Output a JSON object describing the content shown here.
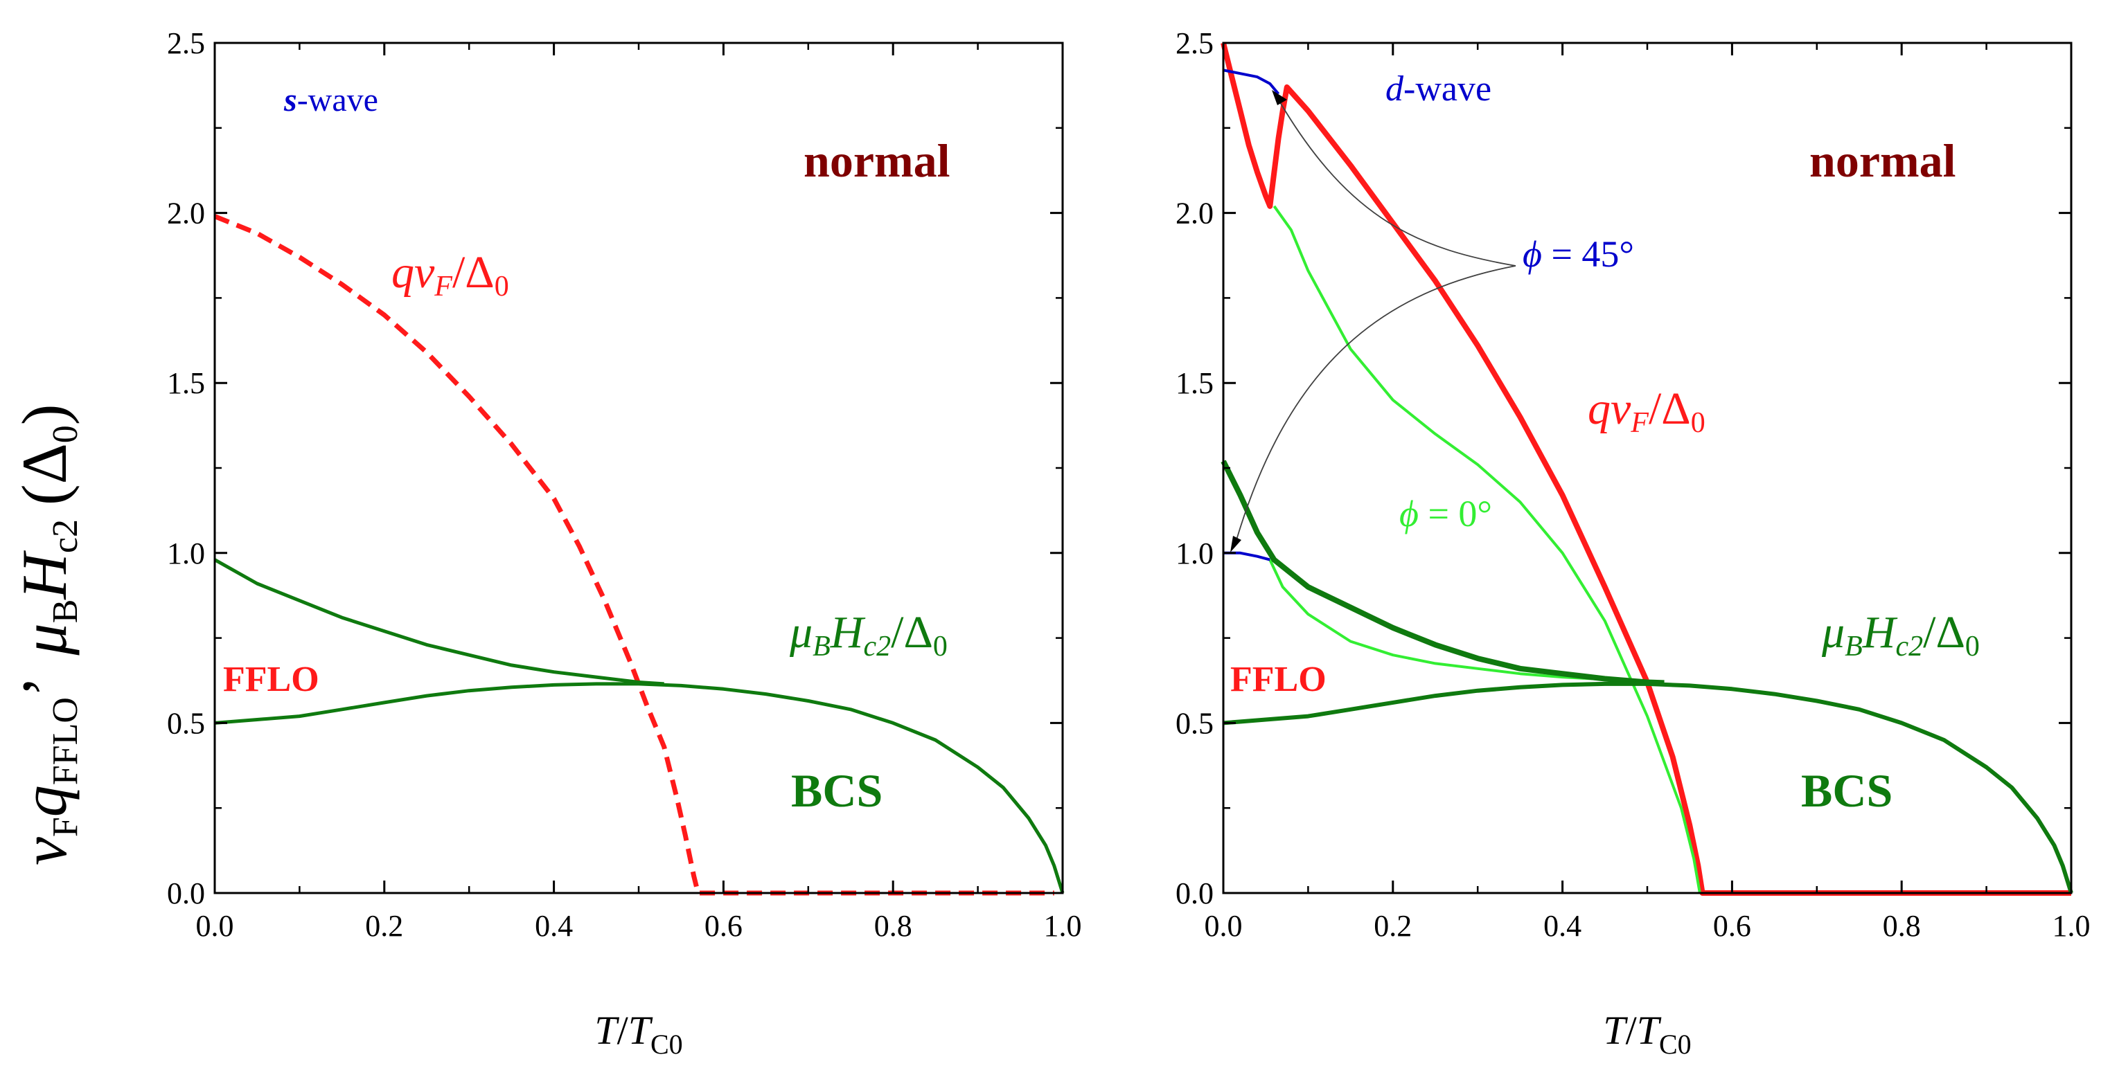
{
  "colors": {
    "red": "#ff1a1a",
    "dark_green": "#0f7a0f",
    "light_green": "#33ee33",
    "blue": "#0000cc",
    "maroon": "#7f0000",
    "axis": "#000000",
    "leader": "#404040"
  },
  "y_axis_label": {
    "mu": "μ",
    "mu_sub": "B",
    "H": "H",
    "H_sub": "c2",
    "delta": "(Δ",
    "delta_sub": "0",
    "delta_close": ")",
    "v": "v",
    "v_sub": "F",
    "q": "q",
    "q_sub": "FFLO",
    "comma": "’"
  },
  "chart_data": [
    {
      "type": "line",
      "panel": "left",
      "xlabel": {
        "T": "T",
        "slash": "/",
        "T2": "T",
        "sub": "C0"
      },
      "xlim": [
        0,
        1
      ],
      "ylim": [
        0,
        2.5
      ],
      "xticks": [
        "0.0",
        "0.2",
        "0.4",
        "0.6",
        "0.8",
        "1.0"
      ],
      "yticks": [
        "0.0",
        "0.5",
        "1.0",
        "1.5",
        "2.0",
        "2.5"
      ],
      "annotations": {
        "wave_s": "s",
        "wave_rest": "-wave",
        "normal": "normal",
        "fflo": "FFLO",
        "bcs": "BCS",
        "qvf_q": "q",
        "qvf_v": "v",
        "qvf_F": "F",
        "qvf_slash": "/Δ",
        "qvf_0": "0",
        "hc2_mu": "μ",
        "hc2_B": "B",
        "hc2_H": "H",
        "hc2_c2": "c2",
        "hc2_slash": "/Δ",
        "hc2_0": "0"
      },
      "series": [
        {
          "name": "qvF/Δ0 (dashed)",
          "color": "red",
          "dash": true,
          "width": 7,
          "x": [
            0,
            0.05,
            0.1,
            0.15,
            0.2,
            0.25,
            0.3,
            0.35,
            0.4,
            0.43,
            0.46,
            0.49,
            0.51,
            0.53,
            0.545,
            0.555,
            0.565,
            0.57,
            0.6,
            0.7,
            0.8,
            0.9,
            0.99
          ],
          "y": [
            1.99,
            1.94,
            1.87,
            1.79,
            1.7,
            1.59,
            1.46,
            1.32,
            1.16,
            1.02,
            0.86,
            0.68,
            0.55,
            0.43,
            0.28,
            0.17,
            0.05,
            0.0,
            0.0,
            0.0,
            0.0,
            0.0,
            0.0
          ]
        },
        {
          "name": "μB Hc2/Δ0 upper branch",
          "color": "dark_green",
          "dash": false,
          "width": 5,
          "x": [
            0,
            0.05,
            0.1,
            0.15,
            0.2,
            0.25,
            0.3,
            0.35,
            0.4,
            0.45,
            0.5,
            0.53
          ],
          "y": [
            0.98,
            0.91,
            0.86,
            0.81,
            0.77,
            0.73,
            0.7,
            0.67,
            0.65,
            0.635,
            0.62,
            0.615
          ]
        },
        {
          "name": "μB Hc2/Δ0 lower branch",
          "color": "dark_green",
          "dash": false,
          "width": 5,
          "x": [
            0,
            0.05,
            0.1,
            0.15,
            0.2,
            0.25,
            0.3,
            0.35,
            0.4,
            0.45,
            0.5,
            0.55,
            0.6,
            0.65,
            0.7,
            0.75,
            0.8,
            0.85,
            0.9,
            0.93,
            0.96,
            0.98,
            0.99,
            1.0
          ],
          "y": [
            0.5,
            0.51,
            0.52,
            0.54,
            0.56,
            0.58,
            0.595,
            0.605,
            0.612,
            0.615,
            0.615,
            0.61,
            0.6,
            0.585,
            0.565,
            0.54,
            0.5,
            0.45,
            0.37,
            0.31,
            0.22,
            0.14,
            0.08,
            0.0
          ]
        }
      ]
    },
    {
      "type": "line",
      "panel": "right",
      "xlabel": {
        "T": "T",
        "slash": "/",
        "T2": "T",
        "sub": "C0"
      },
      "xlim": [
        0,
        1
      ],
      "ylim": [
        0,
        2.5
      ],
      "xticks": [
        "0.0",
        "0.2",
        "0.4",
        "0.6",
        "0.8",
        "1.0"
      ],
      "yticks": [
        "0.0",
        "0.5",
        "1.0",
        "1.5",
        "2.0",
        "2.5"
      ],
      "annotations": {
        "wave_d": "d",
        "wave_rest": "-wave",
        "normal": "normal",
        "fflo": "FFLO",
        "bcs": "BCS",
        "phi45_sym": "ϕ",
        "phi45_val": " = 45°",
        "phi0_sym": "ϕ",
        "phi0_val": " = 0°",
        "qvf_q": "q",
        "qvf_v": "v",
        "qvf_F": "F",
        "qvf_slash": "/Δ",
        "qvf_0": "0",
        "hc2_mu": "μ",
        "hc2_B": "B",
        "hc2_H": "H",
        "hc2_c2": "c2",
        "hc2_slash": "/Δ",
        "hc2_0": "0"
      },
      "series": [
        {
          "name": "qvF/Δ0 (ϕ = 45°)",
          "color": "red",
          "dash": false,
          "width": 8,
          "x": [
            0,
            0.01,
            0.02,
            0.03,
            0.04,
            0.05,
            0.055,
            0.06,
            0.065,
            0.07,
            0.075,
            0.1,
            0.15,
            0.2,
            0.25,
            0.3,
            0.35,
            0.4,
            0.45,
            0.5,
            0.53,
            0.55,
            0.56,
            0.565,
            0.6,
            0.7,
            0.8,
            0.9,
            1.0
          ],
          "y": [
            2.5,
            2.4,
            2.3,
            2.2,
            2.12,
            2.05,
            2.02,
            2.12,
            2.22,
            2.3,
            2.37,
            2.3,
            2.14,
            1.97,
            1.8,
            1.61,
            1.4,
            1.17,
            0.9,
            0.62,
            0.4,
            0.2,
            0.08,
            0.0,
            0.0,
            0.0,
            0.0,
            0.0,
            0.0
          ]
        },
        {
          "name": "qvF/Δ0 (ϕ = 0°)",
          "color": "light_green",
          "dash": false,
          "width": 4,
          "x": [
            0.06,
            0.08,
            0.1,
            0.15,
            0.2,
            0.25,
            0.3,
            0.35,
            0.4,
            0.45,
            0.5,
            0.54,
            0.555,
            0.562
          ],
          "y": [
            2.02,
            1.95,
            1.83,
            1.6,
            1.45,
            1.35,
            1.26,
            1.15,
            1.0,
            0.8,
            0.52,
            0.25,
            0.1,
            0.0
          ]
        },
        {
          "name": "μB Hc2/Δ0 (ϕ = 0°) upper",
          "color": "light_green",
          "dash": false,
          "width": 4,
          "x": [
            0.055,
            0.07,
            0.1,
            0.15,
            0.2,
            0.25,
            0.3,
            0.35,
            0.4,
            0.45,
            0.5,
            0.52
          ],
          "y": [
            0.98,
            0.9,
            0.82,
            0.74,
            0.7,
            0.675,
            0.66,
            0.645,
            0.635,
            0.628,
            0.62,
            0.618
          ]
        },
        {
          "name": "μB Hc2/Δ0 (ϕ = 45°) blue upper",
          "color": "blue",
          "dash": false,
          "width": 4,
          "x": [
            0,
            0.02,
            0.04,
            0.055,
            0.065
          ],
          "y": [
            2.42,
            2.41,
            2.4,
            2.38,
            2.35
          ]
        },
        {
          "name": "μB Hc2/Δ0 (ϕ = 45°) blue lower",
          "color": "blue",
          "dash": false,
          "width": 4,
          "x": [
            0,
            0.02,
            0.04,
            0.055
          ],
          "y": [
            1.0,
            1.0,
            0.99,
            0.98
          ]
        },
        {
          "name": "μB Hc2/Δ0 (ϕ = 45°) upper",
          "color": "dark_green",
          "dash": false,
          "width": 8,
          "x": [
            0,
            0.02,
            0.04,
            0.06,
            0.08,
            0.1,
            0.15,
            0.2,
            0.25,
            0.3,
            0.35,
            0.4,
            0.45,
            0.5,
            0.52
          ],
          "y": [
            1.27,
            1.17,
            1.06,
            0.98,
            0.94,
            0.9,
            0.84,
            0.78,
            0.73,
            0.69,
            0.66,
            0.645,
            0.63,
            0.62,
            0.618
          ]
        },
        {
          "name": "μB Hc2/Δ0 lower branch",
          "color": "dark_green",
          "dash": false,
          "width": 6,
          "x": [
            0,
            0.05,
            0.1,
            0.15,
            0.2,
            0.25,
            0.3,
            0.35,
            0.4,
            0.45,
            0.5,
            0.55,
            0.6,
            0.65,
            0.7,
            0.75,
            0.8,
            0.85,
            0.9,
            0.93,
            0.96,
            0.98,
            0.99,
            1.0
          ],
          "y": [
            0.5,
            0.51,
            0.52,
            0.54,
            0.56,
            0.58,
            0.595,
            0.605,
            0.612,
            0.615,
            0.615,
            0.61,
            0.6,
            0.585,
            0.565,
            0.54,
            0.5,
            0.45,
            0.37,
            0.31,
            0.22,
            0.14,
            0.08,
            0.0
          ]
        }
      ]
    }
  ]
}
